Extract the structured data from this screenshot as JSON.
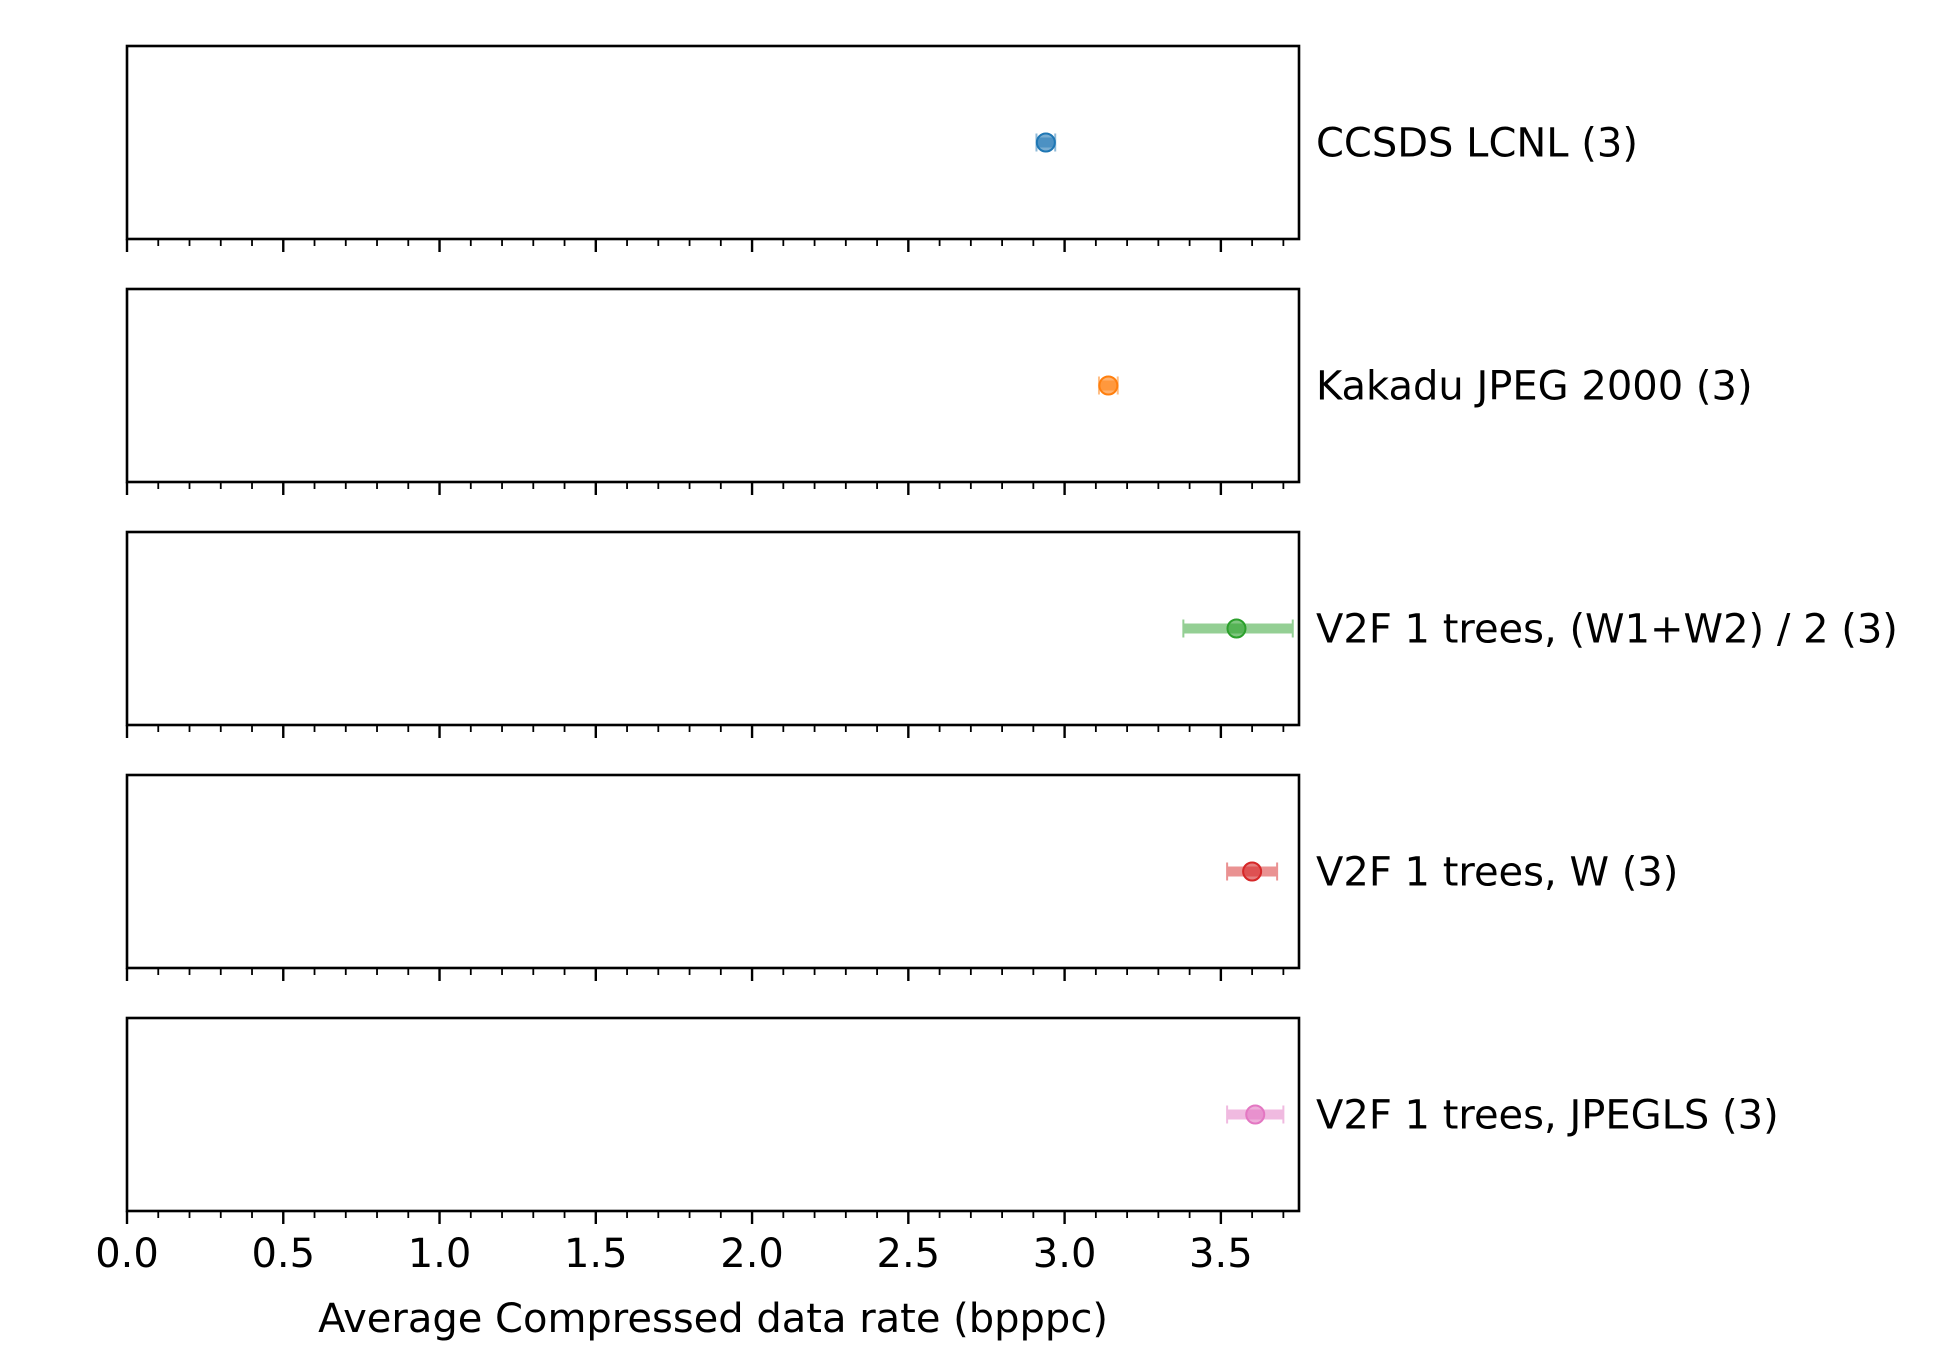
{
  "chart_data": {
    "type": "scatter",
    "xlabel": "Average Compressed data rate (bpppc)",
    "xlim": [
      0.0,
      3.75
    ],
    "x_ticks": [
      "0.0",
      "0.5",
      "1.0",
      "1.5",
      "2.0",
      "2.5",
      "3.0",
      "3.5"
    ],
    "x_tick_values": [
      0.0,
      0.5,
      1.0,
      1.5,
      2.0,
      2.5,
      3.0,
      3.5
    ],
    "minor_tick_step": 0.1,
    "grid": false,
    "series": [
      {
        "name": "CCSDS LCNL (3)",
        "x": 2.94,
        "err_low": 2.91,
        "err_high": 2.97,
        "color": "#1f77b4"
      },
      {
        "name": "Kakadu JPEG 2000 (3)",
        "x": 3.14,
        "err_low": 3.11,
        "err_high": 3.17,
        "color": "#ff7f0e"
      },
      {
        "name": "V2F 1 trees, (W1+W2) / 2 (3)",
        "x": 3.55,
        "err_low": 3.38,
        "err_high": 3.73,
        "color": "#2ca02c"
      },
      {
        "name": "V2F 1 trees, W (3)",
        "x": 3.6,
        "err_low": 3.52,
        "err_high": 3.68,
        "color": "#d62728"
      },
      {
        "name": "V2F 1 trees, JPEGLS (3)",
        "x": 3.61,
        "err_low": 3.52,
        "err_high": 3.7,
        "color": "#e377c2"
      }
    ]
  }
}
